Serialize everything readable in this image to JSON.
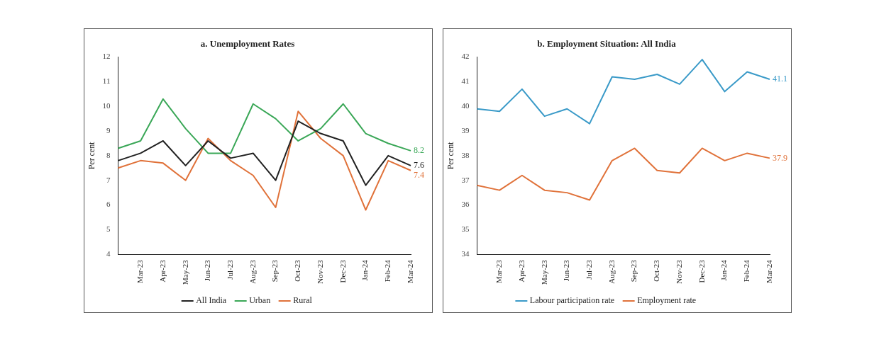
{
  "chart_data": [
    {
      "type": "line",
      "title": "a. Unemployment Rates",
      "ylabel": "Per cent",
      "categories": [
        null,
        "Mar-23",
        "Apr-23",
        "May-23",
        "Jun-23",
        "Jul-23",
        "Aug-23",
        "Sep-23",
        "Oct-23",
        "Nov-23",
        "Dec-23",
        "Jan-24",
        "Feb-24",
        "Mar-24"
      ],
      "series": [
        {
          "name": "All India",
          "color": "#222222",
          "values": [
            7.8,
            8.1,
            8.6,
            7.6,
            8.6,
            7.9,
            8.1,
            7.0,
            9.4,
            8.9,
            8.6,
            6.8,
            8.0,
            7.6
          ],
          "value_labels": [
            null,
            null,
            null,
            null,
            null,
            null,
            null,
            null,
            null,
            null,
            null,
            null,
            null,
            "7.6"
          ]
        },
        {
          "name": "Urban",
          "color": "#3aa757",
          "values": [
            8.3,
            8.6,
            10.3,
            9.1,
            8.1,
            8.1,
            10.1,
            9.5,
            8.6,
            9.1,
            10.1,
            8.9,
            8.5,
            8.2
          ],
          "value_labels": [
            null,
            null,
            null,
            null,
            null,
            null,
            null,
            null,
            null,
            null,
            null,
            null,
            null,
            "8.2"
          ]
        },
        {
          "name": "Rural",
          "color": "#e0723a",
          "values": [
            7.5,
            7.8,
            7.7,
            7.0,
            8.7,
            7.8,
            7.2,
            5.9,
            9.8,
            8.7,
            8.0,
            5.8,
            7.8,
            7.4
          ],
          "value_labels": [
            null,
            null,
            null,
            null,
            null,
            null,
            null,
            null,
            null,
            null,
            null,
            null,
            null,
            "7.4"
          ]
        }
      ],
      "ylim": [
        4,
        12
      ],
      "yticks": [
        4,
        5,
        6,
        7,
        8,
        9,
        10,
        11,
        12
      ],
      "grid": false,
      "legend": "bottom",
      "marker": "none",
      "line_style": "solid"
    },
    {
      "type": "line",
      "title": "b. Employment Situation: All India",
      "ylabel": "Per cent",
      "categories": [
        null,
        "Mar-23",
        "Apr-23",
        "May-23",
        "Jun-23",
        "Jul-23",
        "Aug-23",
        "Sep-23",
        "Oct-23",
        "Nov-23",
        "Dec-23",
        "Jan-24",
        "Feb-24",
        "Mar-24"
      ],
      "series": [
        {
          "name": "Labour participation rate",
          "color": "#3a9ac8",
          "values": [
            39.9,
            39.8,
            40.7,
            39.6,
            39.9,
            39.3,
            41.2,
            41.1,
            41.3,
            40.9,
            41.9,
            40.6,
            41.4,
            41.1
          ],
          "value_labels": [
            null,
            null,
            null,
            null,
            null,
            null,
            null,
            null,
            null,
            null,
            null,
            null,
            null,
            "41.1"
          ]
        },
        {
          "name": "Employment rate",
          "color": "#e0723a",
          "values": [
            36.8,
            36.6,
            37.2,
            36.6,
            36.5,
            36.2,
            37.8,
            38.3,
            37.4,
            37.3,
            38.3,
            37.8,
            38.1,
            37.9
          ],
          "value_labels": [
            null,
            null,
            null,
            null,
            null,
            null,
            null,
            null,
            null,
            null,
            null,
            null,
            null,
            "37.9"
          ]
        }
      ],
      "ylim": [
        34,
        42
      ],
      "yticks": [
        34,
        35,
        36,
        37,
        38,
        39,
        40,
        41,
        42
      ],
      "grid": false,
      "legend": "bottom",
      "marker": "none",
      "line_style": "solid"
    }
  ]
}
